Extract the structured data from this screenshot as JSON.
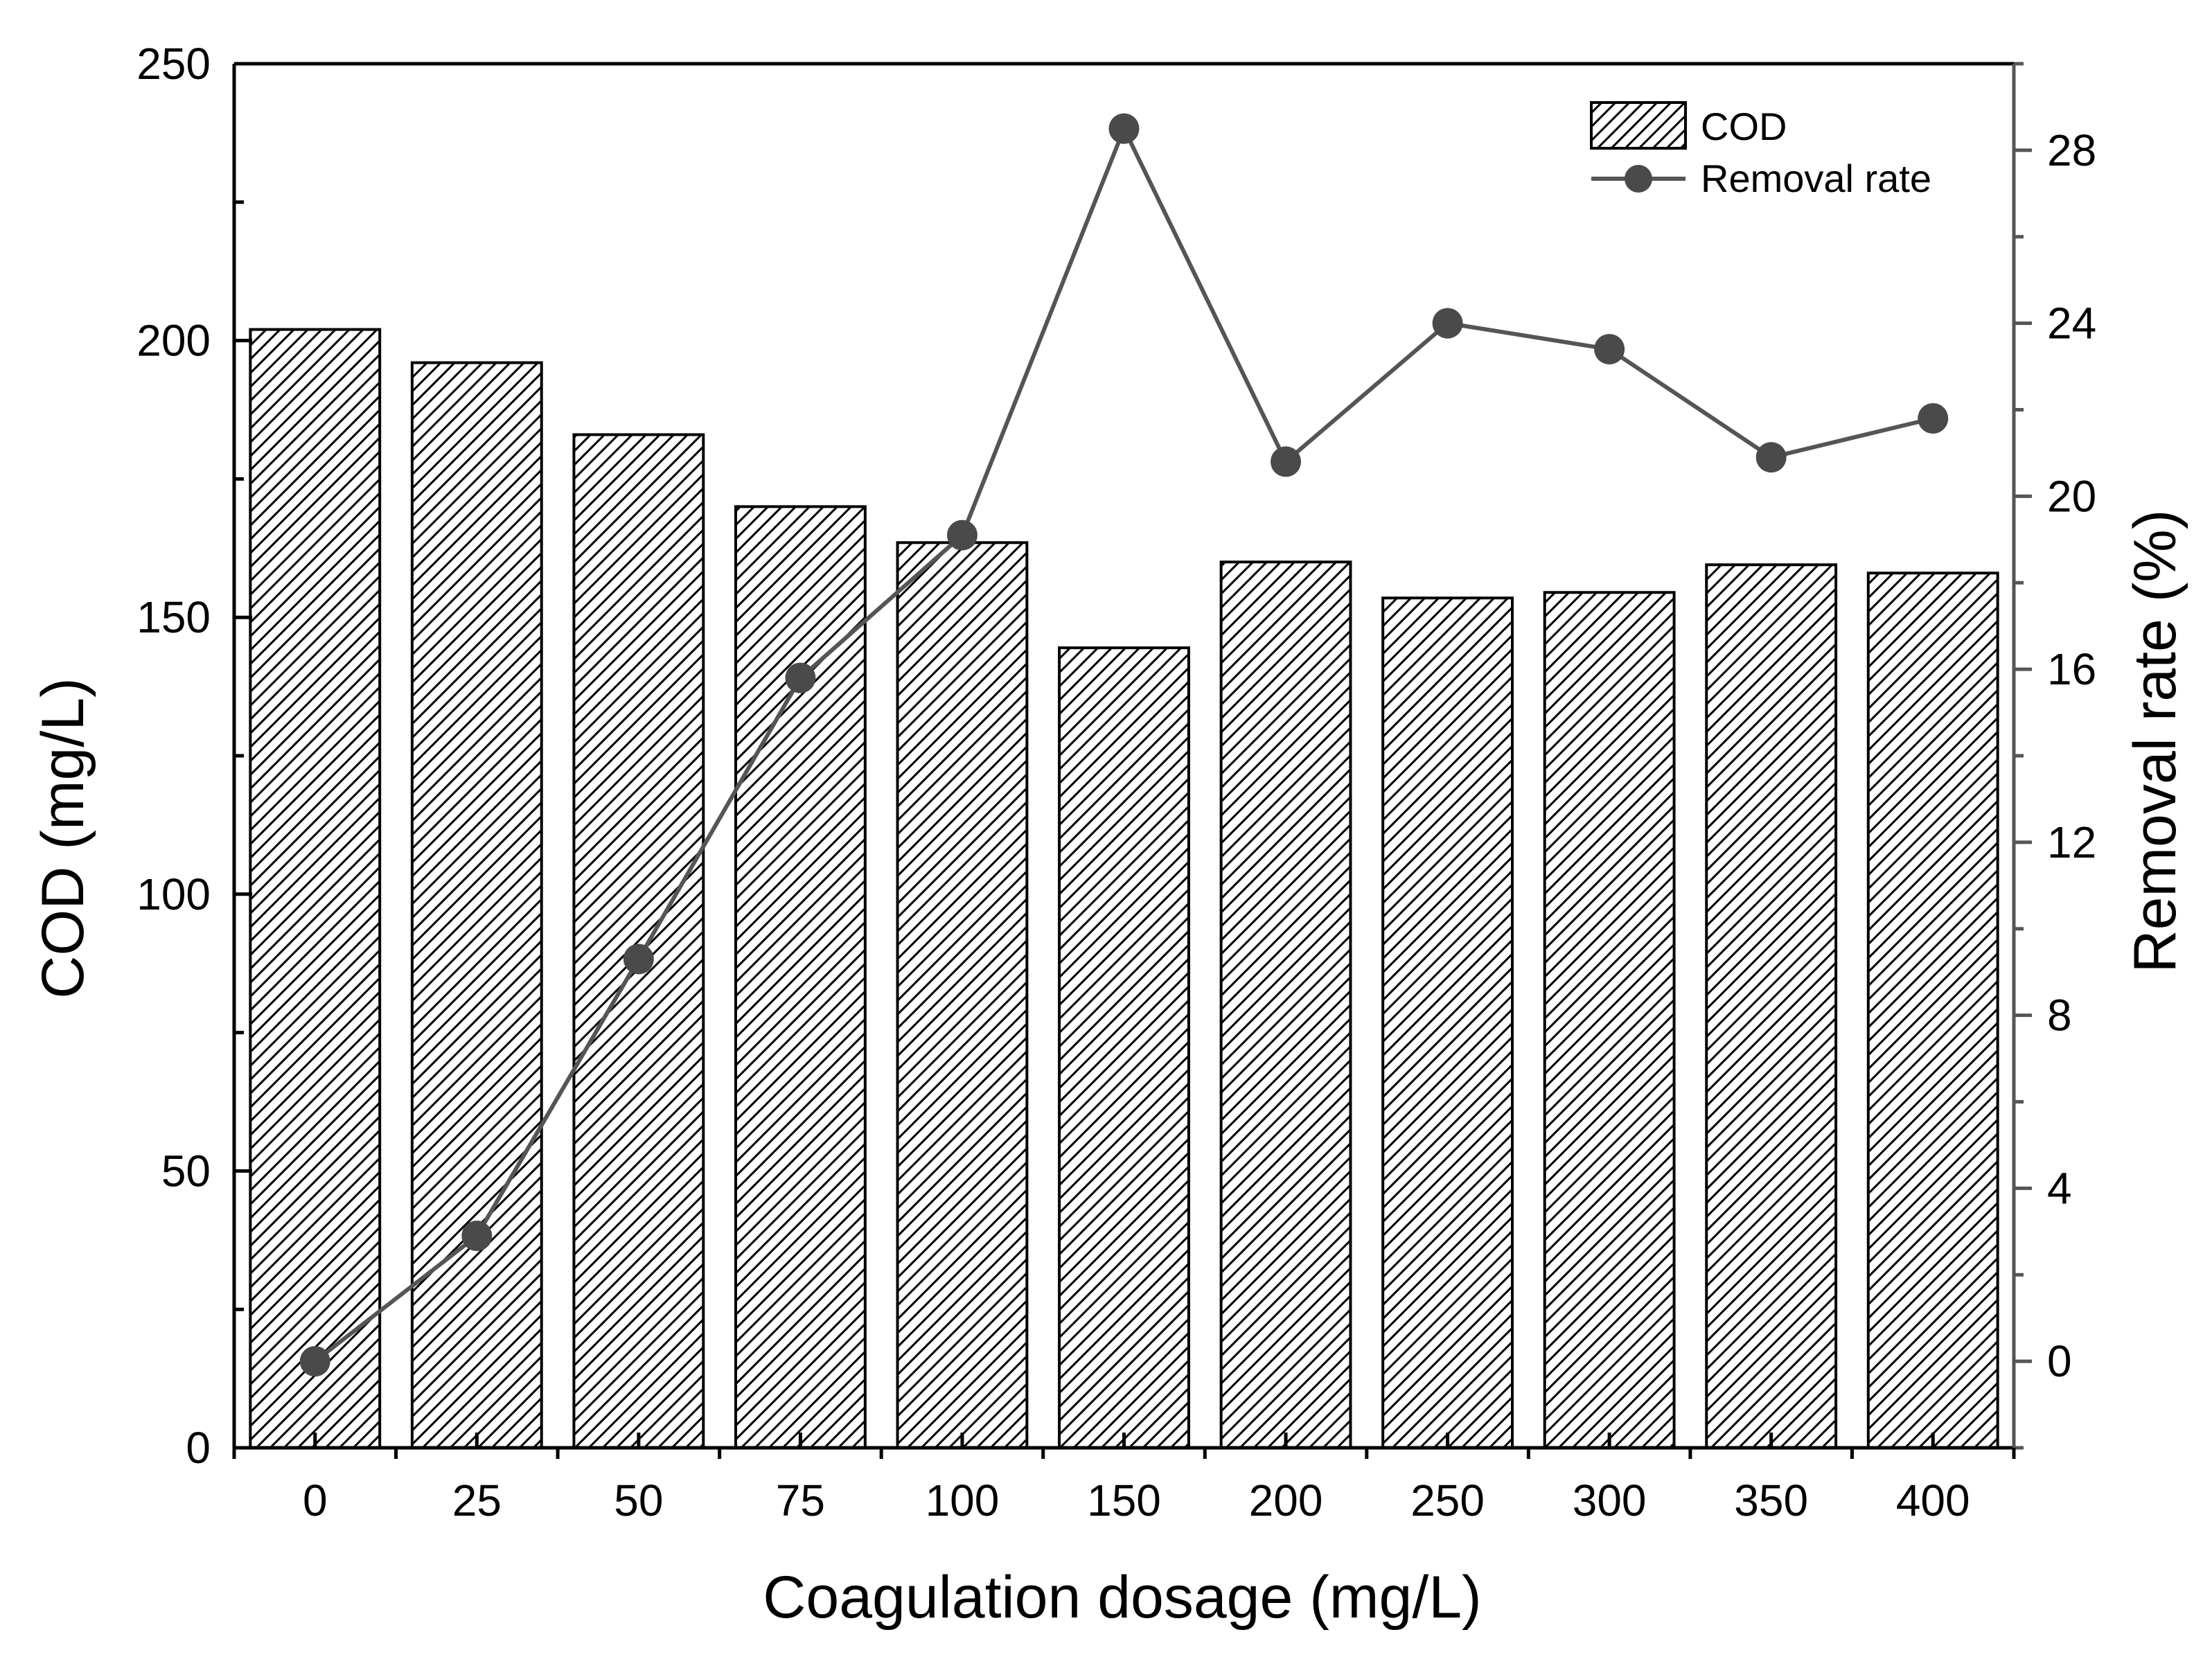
{
  "chart_data": {
    "type": "bar+line",
    "xlabel": "Coagulation dosage (mg/L)",
    "ylabel_left": "COD (mg/L)",
    "ylabel_right": "Removal rate (%)",
    "categories": [
      "0",
      "25",
      "50",
      "75",
      "100",
      "150",
      "200",
      "250",
      "300",
      "350",
      "400"
    ],
    "ylim_left": [
      0,
      250
    ],
    "yticks_left": [
      "0",
      "50",
      "100",
      "150",
      "200",
      "250"
    ],
    "ylim_right": [
      -2,
      30
    ],
    "yticks_right": [
      "0",
      "4",
      "8",
      "12",
      "16",
      "20",
      "24",
      "28"
    ],
    "series": [
      {
        "name": "COD",
        "type": "bar",
        "axis": "left",
        "pattern": "diagonal-hatch",
        "values": [
          202,
          196,
          183,
          170,
          163.5,
          144.5,
          160,
          153.5,
          154.5,
          159.5,
          158
        ]
      },
      {
        "name": "Removal rate",
        "type": "line",
        "axis": "right",
        "marker": "circle",
        "values": [
          0,
          2.9,
          9.3,
          15.8,
          19.1,
          28.5,
          20.8,
          24.0,
          23.4,
          20.9,
          21.8
        ]
      }
    ],
    "legend": {
      "position": "top-right",
      "entries": [
        "COD",
        "Removal rate"
      ]
    },
    "colors": {
      "bar_stroke": "#000000",
      "line": "#555555",
      "marker": "#4a4a4a",
      "axis": "#000000",
      "right_axis": "#555555"
    }
  }
}
